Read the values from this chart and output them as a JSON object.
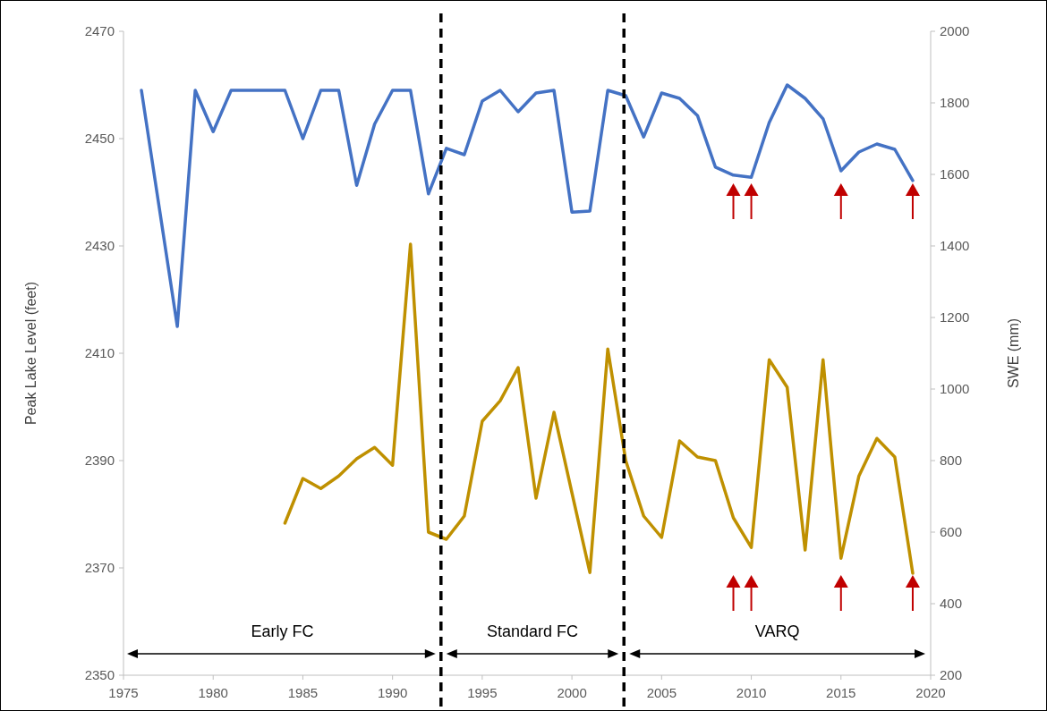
{
  "chart_data": {
    "type": "line",
    "ylabel": "Peak Lake Level (feet)",
    "y2label": "SWE (mm)",
    "xlim": [
      1975,
      2020
    ],
    "xticks": [
      1975,
      1980,
      1985,
      1990,
      1995,
      2000,
      2005,
      2010,
      2015,
      2020
    ],
    "ylim": [
      2350,
      2470
    ],
    "yticks": [
      2350,
      2370,
      2390,
      2410,
      2430,
      2450,
      2470
    ],
    "y2lim": [
      200,
      2000
    ],
    "y2ticks": [
      200,
      400,
      600,
      800,
      1000,
      1200,
      1400,
      1600,
      1800,
      2000
    ],
    "grid": false,
    "marker": "none",
    "line_style": "solid",
    "series": [
      {
        "color": "#4472c4",
        "x": [
          1976,
          1977,
          1978,
          1979,
          1980,
          1981,
          1982,
          1983,
          1984,
          1985,
          1986,
          1987,
          1988,
          1989,
          1990,
          1991,
          1992,
          1993,
          1994,
          1995,
          1996,
          1997,
          1998,
          1999,
          2000,
          2001,
          2002,
          2003,
          2004,
          2005,
          2006,
          2007,
          2008,
          2009,
          2010,
          2011,
          2012,
          2013,
          2014,
          2015,
          2016,
          2017,
          2018,
          2019
        ],
        "values": [
          2459,
          2437,
          2415,
          2459,
          2451.3,
          2459,
          2459,
          2459,
          2459,
          2450,
          2459,
          2459,
          2441.3,
          2452.7,
          2459,
          2459,
          2439.7,
          2448.2,
          2447,
          2457,
          2459,
          2455,
          2458.5,
          2459,
          2436.3,
          2436.5,
          2459,
          2458,
          2450.3,
          2458.5,
          2457.5,
          2454.3,
          2444.7,
          2443.2,
          2442.8,
          2453,
          2460,
          2457.5,
          2453.7,
          2444,
          2447.5,
          2449,
          2448,
          2442.2
        ]
      },
      {
        "color": "#bf9000",
        "axis": "y2",
        "x": [
          1984,
          1985,
          1986,
          1987,
          1988,
          1989,
          1990,
          1991,
          1992,
          1993,
          1994,
          1995,
          1996,
          1997,
          1998,
          1999,
          2000,
          2001,
          2002,
          2003,
          2004,
          2005,
          2006,
          2007,
          2008,
          2009,
          2010,
          2011,
          2012,
          2013,
          2014,
          2015,
          2016,
          2017,
          2018,
          2019
        ],
        "values": [
          625,
          750,
          722,
          757,
          805,
          837,
          787,
          1405,
          600,
          580,
          645,
          910,
          967,
          1060,
          695,
          935,
          710,
          487,
          1112,
          800,
          645,
          585,
          855,
          810,
          800,
          640,
          557,
          1082,
          1005,
          550,
          1082,
          527,
          757,
          862,
          810,
          485
        ]
      }
    ],
    "ref_lines": [
      {
        "axis": "x",
        "value": 1992.7,
        "color": "#000000",
        "line_style": "dashed"
      },
      {
        "axis": "x",
        "value": 2002.9,
        "color": "#000000",
        "line_style": "dashed"
      }
    ],
    "annotations": [
      "Early FC",
      "Standard FC",
      "VARQ"
    ]
  }
}
